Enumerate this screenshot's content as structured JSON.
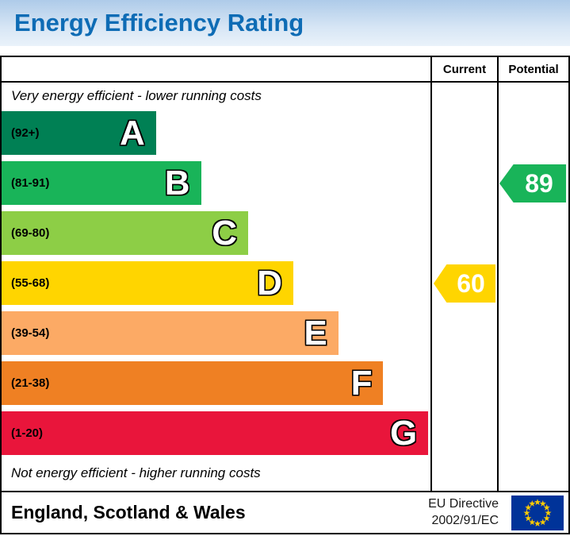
{
  "header": {
    "title": "Energy Efficiency Rating"
  },
  "columns": {
    "current": "Current",
    "potential": "Potential"
  },
  "chart_data": {
    "type": "bar",
    "title": "Energy Efficiency Rating",
    "top_note": "Very energy efficient - lower running costs",
    "bottom_note": "Not energy efficient - higher running costs",
    "bands": [
      {
        "letter": "A",
        "range": "(92+)",
        "color": "#008054",
        "width_pct": 36
      },
      {
        "letter": "B",
        "range": "(81-91)",
        "color": "#19b459",
        "width_pct": 46.5
      },
      {
        "letter": "C",
        "range": "(69-80)",
        "color": "#8dce46",
        "width_pct": 57.5
      },
      {
        "letter": "D",
        "range": "(55-68)",
        "color": "#ffd500",
        "width_pct": 68
      },
      {
        "letter": "E",
        "range": "(39-54)",
        "color": "#fcaa65",
        "width_pct": 78.5
      },
      {
        "letter": "F",
        "range": "(21-38)",
        "color": "#ef8023",
        "width_pct": 89
      },
      {
        "letter": "G",
        "range": "(1-20)",
        "color": "#e9153b",
        "width_pct": 99.5
      }
    ],
    "current": {
      "value": 60,
      "band": "D",
      "band_index": 3,
      "color": "#ffd500"
    },
    "potential": {
      "value": 89,
      "band": "B",
      "band_index": 1,
      "color": "#19b459"
    },
    "legend_position": "none",
    "grid": false
  },
  "footer": {
    "region": "England, Scotland & Wales",
    "directive_line1": "EU Directive",
    "directive_line2": "2002/91/EC",
    "eu_flag": {
      "field_color": "#003399",
      "star_color": "#ffcc00"
    }
  }
}
